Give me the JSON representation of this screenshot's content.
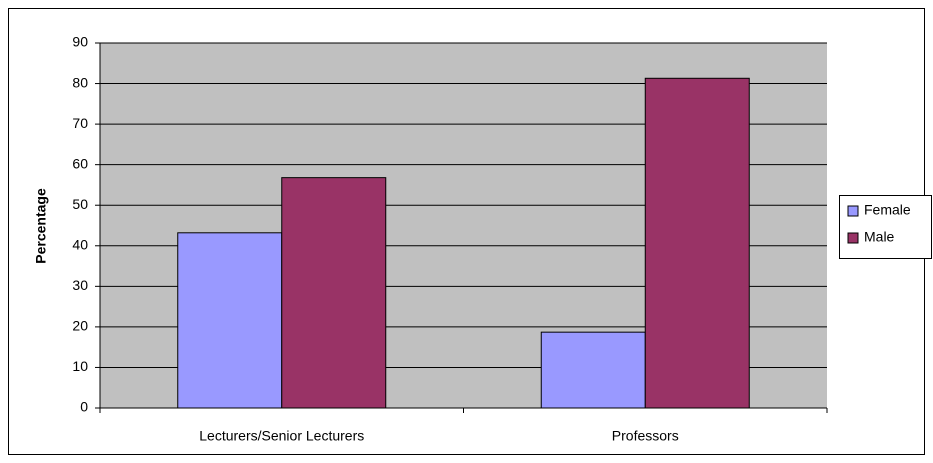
{
  "chart_data": {
    "type": "bar",
    "ylabel": "Percentage",
    "categories": [
      "Lecturers/Senior Lecturers",
      "Professors"
    ],
    "series": [
      {
        "name": "Female",
        "color": "#9999ff",
        "values": [
          43.2,
          18.7
        ]
      },
      {
        "name": "Male",
        "color": "#993366",
        "values": [
          56.8,
          81.3
        ]
      }
    ],
    "ylim": [
      0,
      90
    ],
    "yticks": [
      0,
      10,
      20,
      30,
      40,
      50,
      60,
      70,
      80,
      90
    ],
    "grid": true,
    "legend": "right"
  }
}
